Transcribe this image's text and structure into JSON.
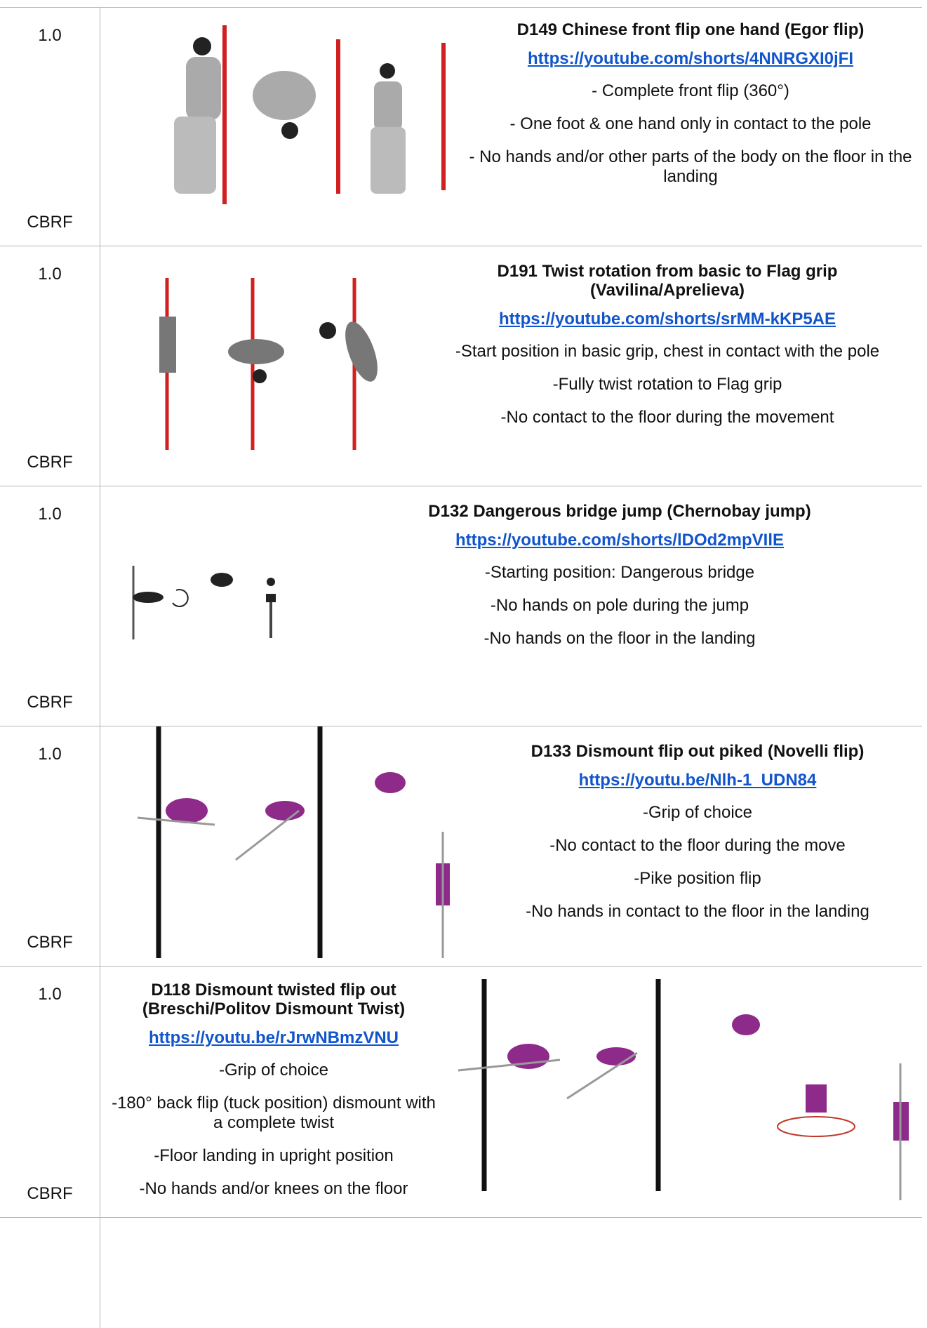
{
  "rows": [
    {
      "score": "1.0",
      "code": "CBRF",
      "title": "D149  Chinese front flip one hand (Egor flip)",
      "link": "https://youtube.com/shorts/4NNRGXI0jFI",
      "lines": [
        "- Complete front flip (360°)",
        "- One foot & one hand only in contact to the pole",
        "- No hands and/or other parts of the body on the floor in the landing"
      ]
    },
    {
      "score": "1.0",
      "code": "CBRF",
      "title": "D191 Twist rotation from basic to Flag grip (Vavilina/Aprelieva)",
      "link": "https://youtube.com/shorts/srMM-kKP5AE",
      "lines": [
        "-Start position in basic grip, chest in contact with the pole",
        "-Fully twist rotation to Flag grip",
        "-No contact to the floor during the movement"
      ]
    },
    {
      "score": "1.0",
      "code": "CBRF",
      "title": "D132 Dangerous bridge jump (Chernobay jump)",
      "link": "https://youtube.com/shorts/lDOd2mpVIlE",
      "lines": [
        "-Starting position: Dangerous bridge",
        "-No hands on pole during the jump",
        "-No hands on the floor in the landing"
      ]
    },
    {
      "score": "1.0",
      "code": "CBRF",
      "title": "D133 Dismount flip out piked (Novelli flip)",
      "link": "https://youtu.be/Nlh-1_UDN84",
      "lines": [
        "-Grip of choice",
        "-No contact to the floor during the move",
        "-Pike position flip",
        "-No hands in contact to the floor in the landing"
      ]
    },
    {
      "score": "1.0",
      "code": "CBRF",
      "title": "D118 Dismount twisted flip out (Breschi/Politov Dismount Twist)",
      "link": "https://youtu.be/rJrwNBmzVNU",
      "lines": [
        "-Grip of choice",
        "-180° back flip (tuck position) dismount with a complete twist",
        "-Floor landing in upright position",
        "-No hands and/or knees on the floor"
      ]
    }
  ]
}
